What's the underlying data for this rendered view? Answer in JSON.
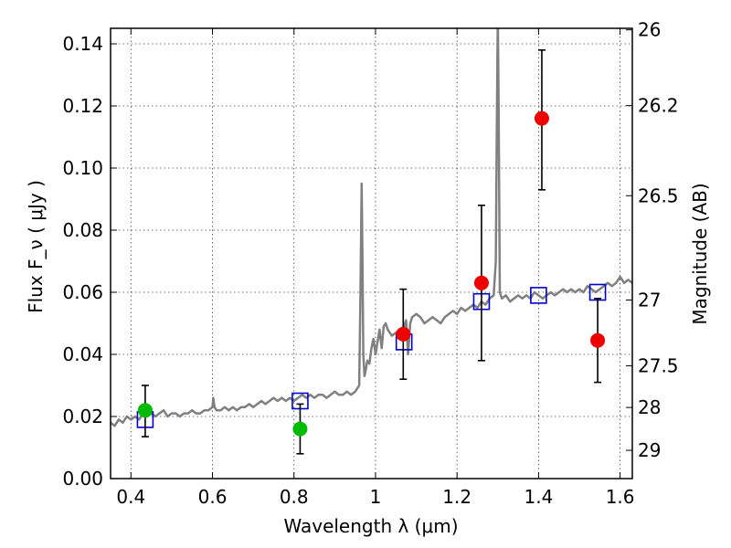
{
  "chart_data": {
    "type": "scatter",
    "title": "",
    "xlabel": "Wavelength  λ (μm)",
    "ylabel": "Flux  F_ν  ( μJy )",
    "y2label": "Magnitude (AB)",
    "xlim": [
      0.35,
      1.63
    ],
    "ylim": [
      0.0,
      0.145
    ],
    "grid": true,
    "x_ticks": [
      0.4,
      0.6,
      0.8,
      1.0,
      1.2,
      1.4,
      1.6
    ],
    "x_tick_labels": [
      "0.4",
      "0.6",
      "0.8",
      "1",
      "1.2",
      "1.4",
      "1.6"
    ],
    "y_ticks": [
      0.0,
      0.02,
      0.04,
      0.06,
      0.08,
      0.1,
      0.12,
      0.14
    ],
    "y_tick_labels": [
      "0.00",
      "0.02",
      "0.04",
      "0.06",
      "0.08",
      "0.10",
      "0.12",
      "0.14"
    ],
    "y2_ticks": [
      {
        "label": "26",
        "flux": 0.1445
      },
      {
        "label": "26.2",
        "flux": 0.1201
      },
      {
        "label": "26.5",
        "flux": 0.0911
      },
      {
        "label": "27",
        "flux": 0.0575
      },
      {
        "label": "27.5",
        "flux": 0.0363
      },
      {
        "label": "28",
        "flux": 0.0229
      },
      {
        "label": "29",
        "flux": 0.0091
      }
    ],
    "series": [
      {
        "kind": "line",
        "color": "#808080",
        "x": [
          0.35,
          0.36,
          0.37,
          0.38,
          0.39,
          0.4,
          0.41,
          0.42,
          0.43,
          0.44,
          0.45,
          0.46,
          0.47,
          0.48,
          0.49,
          0.5,
          0.51,
          0.52,
          0.53,
          0.54,
          0.55,
          0.56,
          0.57,
          0.58,
          0.59,
          0.6,
          0.602,
          0.605,
          0.61,
          0.62,
          0.63,
          0.64,
          0.65,
          0.66,
          0.67,
          0.68,
          0.69,
          0.7,
          0.71,
          0.72,
          0.73,
          0.74,
          0.75,
          0.76,
          0.77,
          0.78,
          0.79,
          0.8,
          0.81,
          0.82,
          0.83,
          0.84,
          0.85,
          0.86,
          0.87,
          0.88,
          0.89,
          0.9,
          0.91,
          0.92,
          0.93,
          0.94,
          0.95,
          0.96,
          0.963,
          0.966,
          0.968,
          0.97,
          0.973,
          0.976,
          0.98,
          0.985,
          0.99,
          0.995,
          1.0,
          1.005,
          1.01,
          1.015,
          1.02,
          1.025,
          1.03,
          1.04,
          1.05,
          1.06,
          1.07,
          1.075,
          1.08,
          1.085,
          1.09,
          1.1,
          1.11,
          1.12,
          1.13,
          1.14,
          1.15,
          1.16,
          1.17,
          1.18,
          1.19,
          1.2,
          1.21,
          1.22,
          1.23,
          1.24,
          1.25,
          1.26,
          1.27,
          1.28,
          1.29,
          1.295,
          1.298,
          1.3,
          1.302,
          1.305,
          1.31,
          1.32,
          1.33,
          1.34,
          1.35,
          1.36,
          1.37,
          1.38,
          1.39,
          1.4,
          1.41,
          1.42,
          1.43,
          1.44,
          1.45,
          1.46,
          1.47,
          1.48,
          1.49,
          1.5,
          1.51,
          1.52,
          1.53,
          1.54,
          1.55,
          1.56,
          1.57,
          1.58,
          1.59,
          1.6,
          1.61,
          1.62,
          1.63
        ],
        "y": [
          0.018,
          0.017,
          0.019,
          0.018,
          0.02,
          0.019,
          0.02,
          0.019,
          0.021,
          0.02,
          0.021,
          0.02,
          0.021,
          0.022,
          0.02,
          0.021,
          0.021,
          0.02,
          0.021,
          0.021,
          0.022,
          0.021,
          0.021,
          0.022,
          0.022,
          0.023,
          0.026,
          0.023,
          0.022,
          0.022,
          0.023,
          0.022,
          0.023,
          0.022,
          0.023,
          0.023,
          0.024,
          0.023,
          0.024,
          0.025,
          0.024,
          0.025,
          0.026,
          0.025,
          0.026,
          0.025,
          0.026,
          0.025,
          0.026,
          0.027,
          0.026,
          0.027,
          0.026,
          0.027,
          0.027,
          0.026,
          0.027,
          0.028,
          0.027,
          0.027,
          0.028,
          0.027,
          0.028,
          0.03,
          0.06,
          0.095,
          0.07,
          0.04,
          0.033,
          0.035,
          0.038,
          0.037,
          0.042,
          0.045,
          0.04,
          0.044,
          0.048,
          0.042,
          0.049,
          0.05,
          0.048,
          0.046,
          0.047,
          0.048,
          0.049,
          0.051,
          0.04,
          0.05,
          0.052,
          0.053,
          0.052,
          0.05,
          0.051,
          0.052,
          0.051,
          0.05,
          0.052,
          0.053,
          0.054,
          0.053,
          0.055,
          0.054,
          0.055,
          0.056,
          0.055,
          0.057,
          0.056,
          0.058,
          0.059,
          0.07,
          0.12,
          0.15,
          0.12,
          0.06,
          0.058,
          0.059,
          0.057,
          0.058,
          0.059,
          0.058,
          0.059,
          0.058,
          0.06,
          0.059,
          0.058,
          0.059,
          0.06,
          0.059,
          0.06,
          0.061,
          0.06,
          0.061,
          0.06,
          0.061,
          0.06,
          0.062,
          0.061,
          0.06,
          0.061,
          0.062,
          0.063,
          0.062,
          0.063,
          0.065,
          0.063,
          0.064,
          0.063
        ]
      },
      {
        "kind": "marker",
        "marker": "square",
        "color": "#0000cc",
        "x": [
          0.435,
          0.815,
          1.07,
          1.26,
          1.4,
          1.545
        ],
        "y": [
          0.019,
          0.025,
          0.044,
          0.057,
          0.059,
          0.06
        ]
      },
      {
        "kind": "marker",
        "marker": "circle",
        "color": "#00bb00",
        "x": [
          0.435,
          0.815
        ],
        "y": [
          0.022,
          0.016
        ],
        "yerr_low": [
          0.0135,
          0.008
        ],
        "yerr_high": [
          0.03,
          0.024
        ]
      },
      {
        "kind": "marker",
        "marker": "circle",
        "color": "#ee0000",
        "x": [
          1.068,
          1.26,
          1.408,
          1.545
        ],
        "y": [
          0.0465,
          0.063,
          0.116,
          0.0445
        ],
        "yerr_low": [
          0.032,
          0.038,
          0.093,
          0.031
        ],
        "yerr_high": [
          0.061,
          0.088,
          0.138,
          0.058
        ]
      }
    ]
  }
}
